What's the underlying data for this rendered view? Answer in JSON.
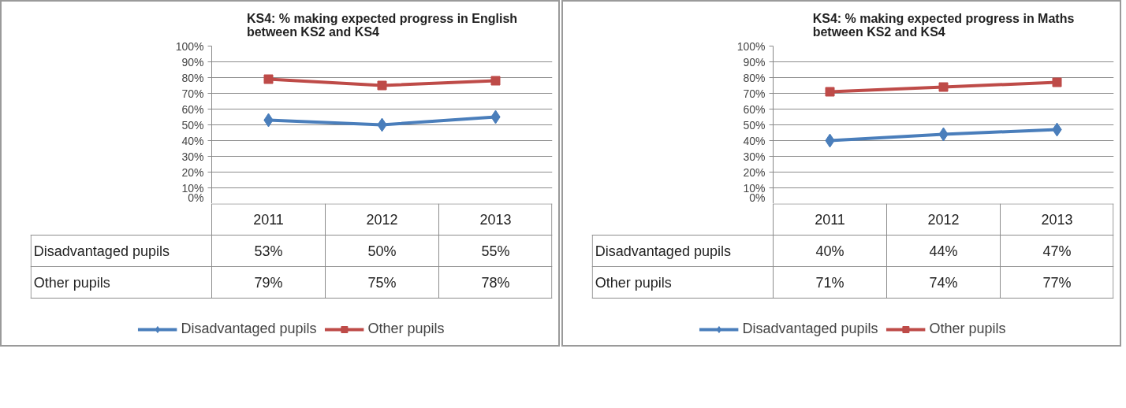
{
  "chart_data": [
    {
      "type": "line",
      "title": "KS4: % making expected progress in English\nbetween KS2 and KS4",
      "categories": [
        "2011",
        "2012",
        "2013"
      ],
      "series": [
        {
          "name": "Disadvantaged pupils",
          "color": "#4a7ebb",
          "marker": "diamond",
          "values": [
            53,
            50,
            55
          ],
          "value_labels": [
            "53%",
            "50%",
            "55%"
          ]
        },
        {
          "name": "Other pupils",
          "color": "#be4b48",
          "marker": "square",
          "values": [
            79,
            75,
            78
          ],
          "value_labels": [
            "79%",
            "75%",
            "78%"
          ]
        }
      ],
      "ylim": [
        0,
        100
      ],
      "yticks": [
        {
          "value": 0,
          "label": "0%"
        },
        {
          "value": 10,
          "label": "10%"
        },
        {
          "value": 20,
          "label": "20%"
        },
        {
          "value": 30,
          "label": "30%"
        },
        {
          "value": 40,
          "label": "40%"
        },
        {
          "value": 50,
          "label": "50%"
        },
        {
          "value": 60,
          "label": "60%"
        },
        {
          "value": 70,
          "label": "70%"
        },
        {
          "value": 80,
          "label": "80%"
        },
        {
          "value": 90,
          "label": "90%"
        },
        {
          "value": 100,
          "label": "100%"
        }
      ],
      "grid": "y",
      "legend": "bottom",
      "line_style": "solid"
    },
    {
      "type": "line",
      "title": "KS4: % making expected progress in Maths\nbetween KS2 and KS4",
      "categories": [
        "2011",
        "2012",
        "2013"
      ],
      "series": [
        {
          "name": "Disadvantaged pupils",
          "color": "#4a7ebb",
          "marker": "diamond",
          "values": [
            40,
            44,
            47
          ],
          "value_labels": [
            "40%",
            "44%",
            "47%"
          ]
        },
        {
          "name": "Other pupils",
          "color": "#be4b48",
          "marker": "square",
          "values": [
            71,
            74,
            77
          ],
          "value_labels": [
            "71%",
            "74%",
            "77%"
          ]
        }
      ],
      "ylim": [
        0,
        100
      ],
      "yticks": [
        {
          "value": 0,
          "label": "0%"
        },
        {
          "value": 10,
          "label": "10%"
        },
        {
          "value": 20,
          "label": "20%"
        },
        {
          "value": 30,
          "label": "30%"
        },
        {
          "value": 40,
          "label": "40%"
        },
        {
          "value": 50,
          "label": "50%"
        },
        {
          "value": 60,
          "label": "60%"
        },
        {
          "value": 70,
          "label": "70%"
        },
        {
          "value": 80,
          "label": "80%"
        },
        {
          "value": 90,
          "label": "90%"
        },
        {
          "value": 100,
          "label": "100%"
        }
      ],
      "grid": "y",
      "legend": "bottom",
      "line_style": "solid"
    }
  ]
}
